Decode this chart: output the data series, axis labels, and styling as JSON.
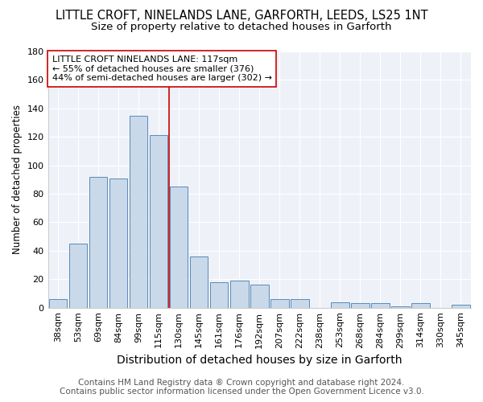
{
  "title": "LITTLE CROFT, NINELANDS LANE, GARFORTH, LEEDS, LS25 1NT",
  "subtitle": "Size of property relative to detached houses in Garforth",
  "xlabel": "Distribution of detached houses by size in Garforth",
  "ylabel": "Number of detached properties",
  "footer1": "Contains HM Land Registry data ® Crown copyright and database right 2024.",
  "footer2": "Contains public sector information licensed under the Open Government Licence v3.0.",
  "annotation_line1": "LITTLE CROFT NINELANDS LANE: 117sqm",
  "annotation_line2": "← 55% of detached houses are smaller (376)",
  "annotation_line3": "44% of semi-detached houses are larger (302) →",
  "bar_labels": [
    "38sqm",
    "53sqm",
    "69sqm",
    "84sqm",
    "99sqm",
    "115sqm",
    "130sqm",
    "145sqm",
    "161sqm",
    "176sqm",
    "192sqm",
    "207sqm",
    "222sqm",
    "238sqm",
    "253sqm",
    "268sqm",
    "284sqm",
    "299sqm",
    "314sqm",
    "330sqm",
    "345sqm"
  ],
  "bar_values": [
    6,
    45,
    92,
    91,
    135,
    121,
    85,
    36,
    18,
    19,
    16,
    6,
    6,
    0,
    4,
    3,
    3,
    1,
    3,
    0,
    2
  ],
  "bar_color": "#c9d9ea",
  "bar_edge_color": "#5a8ab8",
  "vline_x": 5.5,
  "vline_color": "#cc0000",
  "ylim": [
    0,
    180
  ],
  "yticks": [
    0,
    20,
    40,
    60,
    80,
    100,
    120,
    140,
    160,
    180
  ],
  "bg_color": "#ffffff",
  "plot_bg_color": "#eef2f8",
  "annotation_box_color": "#ffffff",
  "annotation_box_edge": "#cc0000",
  "title_fontsize": 10.5,
  "subtitle_fontsize": 9.5,
  "xlabel_fontsize": 10,
  "ylabel_fontsize": 8.5,
  "tick_fontsize": 8,
  "annotation_fontsize": 8,
  "footer_fontsize": 7.5
}
